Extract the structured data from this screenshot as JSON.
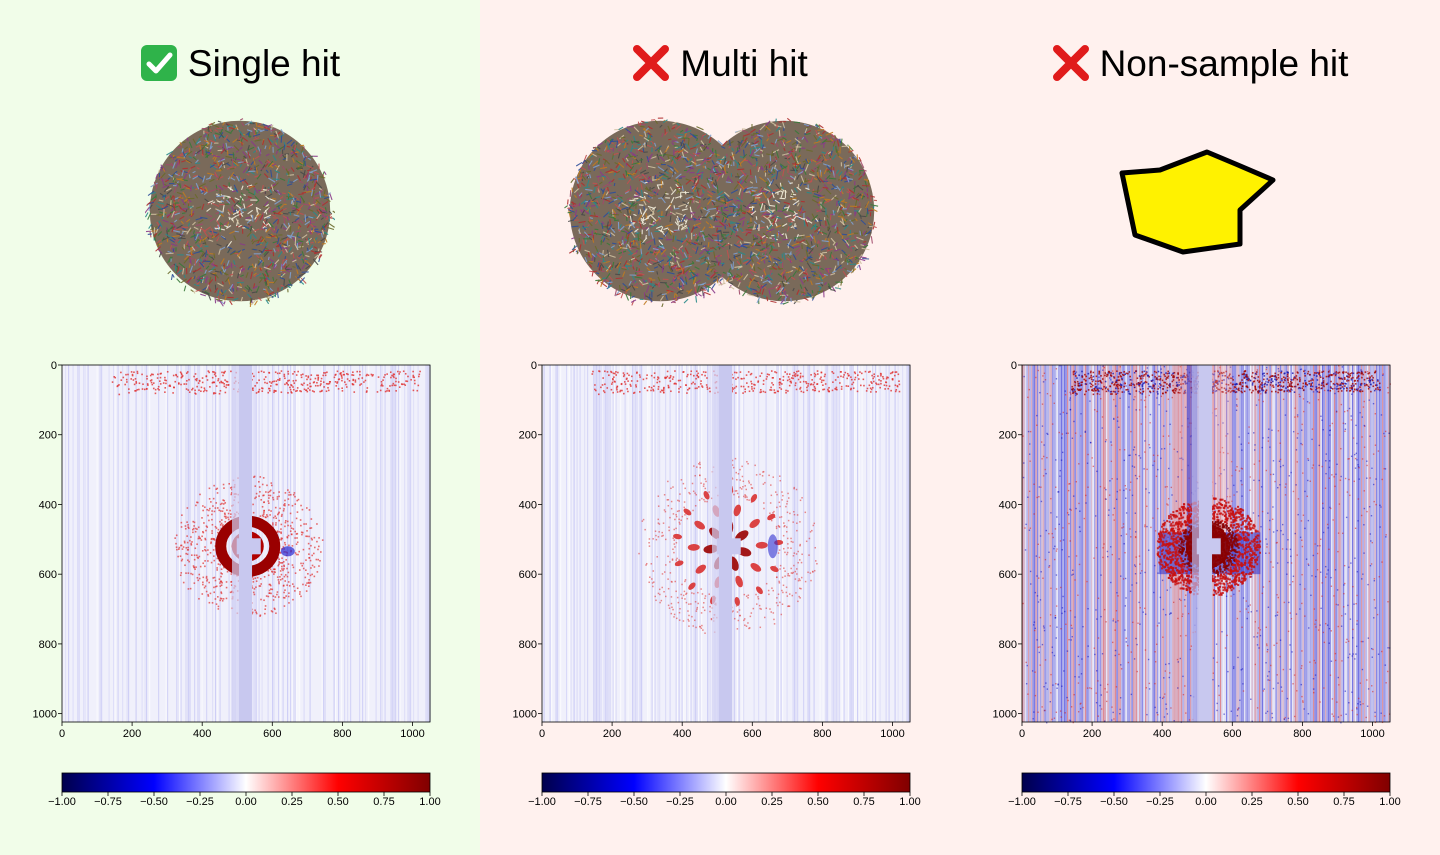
{
  "panels": [
    {
      "title": "Single hit",
      "status": "accept",
      "icon": "check-mark-icon",
      "icon_color": "#2fb34a",
      "sample": "single-particle",
      "noise": "low",
      "pattern": "rings"
    },
    {
      "title": "Multi hit",
      "status": "reject",
      "icon": "cross-mark-icon",
      "icon_color": "#e01b1b",
      "sample": "double-particle",
      "noise": "low",
      "pattern": "speckle"
    },
    {
      "title": "Non-sample hit",
      "status": "reject",
      "icon": "cross-mark-icon",
      "icon_color": "#e01b1b",
      "sample": "non-sample-blob",
      "noise": "high",
      "pattern": "blob"
    }
  ],
  "axes": {
    "x_ticks": [
      "0",
      "200",
      "400",
      "600",
      "800",
      "1000"
    ],
    "y_ticks": [
      "0",
      "200",
      "400",
      "600",
      "800",
      "1000"
    ]
  },
  "colorbar": {
    "ticks": [
      "−1.00",
      "−0.75",
      "−0.50",
      "−0.25",
      "0.00",
      "0.25",
      "0.50",
      "0.75",
      "1.00"
    ],
    "colors": [
      "#00004c",
      "#0000ff",
      "#ffffff",
      "#ff0000",
      "#800000"
    ]
  },
  "colors": {
    "accept_background": "#f1fde9",
    "reject_background": "#fff1ee",
    "blob_fill": "#fff200",
    "blob_stroke": "#000000"
  }
}
